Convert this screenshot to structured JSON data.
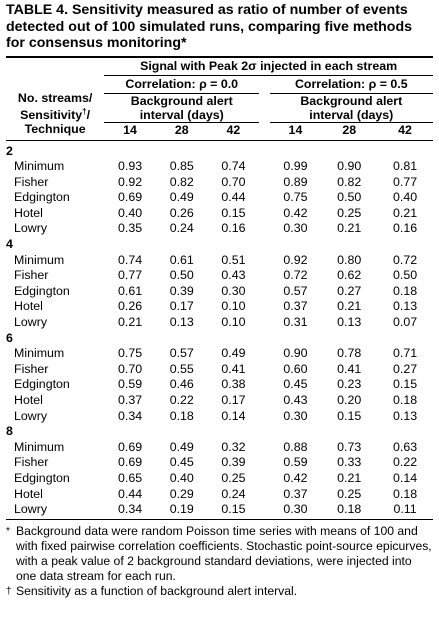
{
  "title": "TABLE 4. Sensitivity measured as ratio of number of events detected out of 100 simulated runs, comparing five methods for consensus monitoring*",
  "header": {
    "stub": [
      "No. streams/",
      "Sensitivity",
      "/",
      "Technique"
    ],
    "stub_dagger": "†",
    "signal": "Signal with Peak 2σ injected in each stream",
    "corr_a": "Correlation: ρ = 0.0",
    "corr_b": "Correlation: ρ = 0.5",
    "interval_line1": "Background alert",
    "interval_line2": "interval (days)",
    "days": [
      "14",
      "28",
      "42",
      "14",
      "28",
      "42"
    ]
  },
  "groups": [
    {
      "label": "2",
      "rows": [
        {
          "technique": "Minimum",
          "values": [
            "0.93",
            "0.85",
            "0.74",
            "0.99",
            "0.90",
            "0.81"
          ]
        },
        {
          "technique": "Fisher",
          "values": [
            "0.92",
            "0.82",
            "0.70",
            "0.89",
            "0.82",
            "0.77"
          ]
        },
        {
          "technique": "Edgington",
          "values": [
            "0.69",
            "0.49",
            "0.44",
            "0.75",
            "0.50",
            "0.40"
          ]
        },
        {
          "technique": "Hotel",
          "values": [
            "0.40",
            "0.26",
            "0.15",
            "0.42",
            "0.25",
            "0.21"
          ]
        },
        {
          "technique": "Lowry",
          "values": [
            "0.35",
            "0.24",
            "0.16",
            "0.30",
            "0.21",
            "0.16"
          ]
        }
      ]
    },
    {
      "label": "4",
      "rows": [
        {
          "technique": "Minimum",
          "values": [
            "0.74",
            "0.61",
            "0.51",
            "0.92",
            "0.80",
            "0.72"
          ]
        },
        {
          "technique": "Fisher",
          "values": [
            "0.77",
            "0.50",
            "0.43",
            "0.72",
            "0.62",
            "0.50"
          ]
        },
        {
          "technique": "Edgington",
          "values": [
            "0.61",
            "0.39",
            "0.30",
            "0.57",
            "0.27",
            "0.18"
          ]
        },
        {
          "technique": "Hotel",
          "values": [
            "0.26",
            "0.17",
            "0.10",
            "0.37",
            "0.21",
            "0.13"
          ]
        },
        {
          "technique": "Lowry",
          "values": [
            "0.21",
            "0.13",
            "0.10",
            "0.31",
            "0.13",
            "0.07"
          ]
        }
      ]
    },
    {
      "label": "6",
      "rows": [
        {
          "technique": "Minimum",
          "values": [
            "0.75",
            "0.57",
            "0.49",
            "0.90",
            "0.78",
            "0.71"
          ]
        },
        {
          "technique": "Fisher",
          "values": [
            "0.70",
            "0.55",
            "0.41",
            "0.60",
            "0.41",
            "0.27"
          ]
        },
        {
          "technique": "Edgington",
          "values": [
            "0.59",
            "0.46",
            "0.38",
            "0.45",
            "0.23",
            "0.15"
          ]
        },
        {
          "technique": "Hotel",
          "values": [
            "0.37",
            "0.22",
            "0.17",
            "0.43",
            "0.20",
            "0.18"
          ]
        },
        {
          "technique": "Lowry",
          "values": [
            "0.34",
            "0.18",
            "0.14",
            "0.30",
            "0.15",
            "0.13"
          ]
        }
      ]
    },
    {
      "label": "8",
      "rows": [
        {
          "technique": "Minimum",
          "values": [
            "0.69",
            "0.49",
            "0.32",
            "0.88",
            "0.73",
            "0.63"
          ]
        },
        {
          "technique": "Fisher",
          "values": [
            "0.69",
            "0.45",
            "0.39",
            "0.59",
            "0.33",
            "0.22"
          ]
        },
        {
          "technique": "Edgington",
          "values": [
            "0.65",
            "0.40",
            "0.25",
            "0.42",
            "0.21",
            "0.14"
          ]
        },
        {
          "technique": "Hotel",
          "values": [
            "0.44",
            "0.29",
            "0.24",
            "0.37",
            "0.25",
            "0.18"
          ]
        },
        {
          "technique": "Lowry",
          "values": [
            "0.34",
            "0.19",
            "0.15",
            "0.30",
            "0.18",
            "0.11"
          ]
        }
      ]
    }
  ],
  "footnotes": [
    {
      "mark": "*",
      "text": "Background data were random Poisson time series with means of 100 and with fixed pairwise correlation coefficients. Stochastic point-source epicurves, with a peak value of 2 background standard deviations, were injected into one data stream for each run."
    },
    {
      "mark": "†",
      "text": "Sensitivity as a function of background alert interval."
    }
  ]
}
